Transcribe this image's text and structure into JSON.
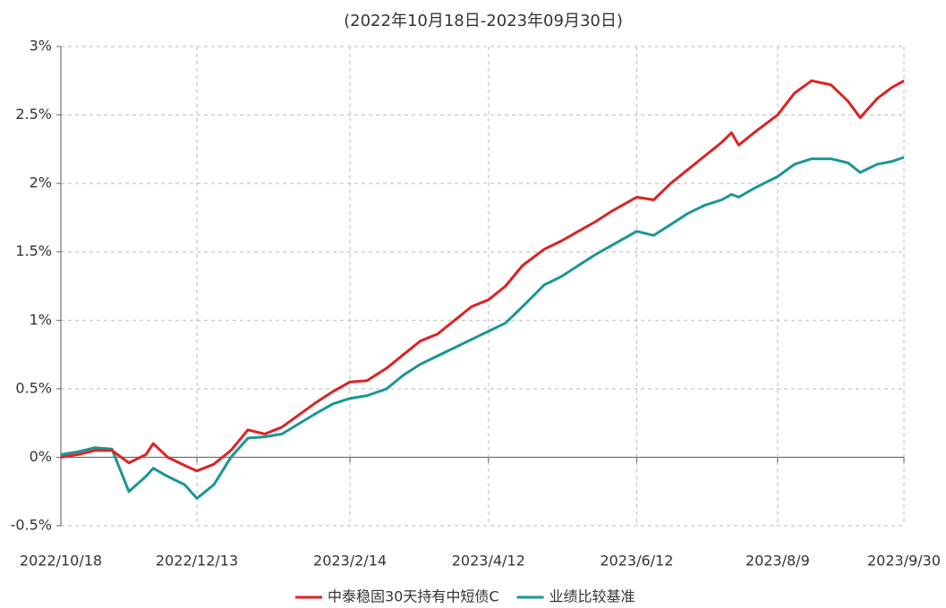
{
  "chart_data": {
    "type": "line",
    "title": "(2022年10月18日-2023年09月30日)",
    "x": [
      "2022/10/18",
      "2022/10/25",
      "2022/11/1",
      "2022/11/8",
      "2022/11/15",
      "2022/11/22",
      "2022/11/25",
      "2022/12/1",
      "2022/12/8",
      "2022/12/13",
      "2022/12/20",
      "2022/12/27",
      "2023/1/3",
      "2023/1/10",
      "2023/1/17",
      "2023/1/31",
      "2023/2/7",
      "2023/2/14",
      "2023/2/21",
      "2023/3/1",
      "2023/3/8",
      "2023/3/15",
      "2023/3/22",
      "2023/3/29",
      "2023/4/5",
      "2023/4/12",
      "2023/4/19",
      "2023/4/26",
      "2023/5/5",
      "2023/5/12",
      "2023/5/19",
      "2023/5/26",
      "2023/6/2",
      "2023/6/12",
      "2023/6/19",
      "2023/6/26",
      "2023/7/3",
      "2023/7/10",
      "2023/7/17",
      "2023/7/21",
      "2023/7/24",
      "2023/7/31",
      "2023/8/9",
      "2023/8/16",
      "2023/8/23",
      "2023/8/31",
      "2023/9/7",
      "2023/9/12",
      "2023/9/19",
      "2023/9/25",
      "2023/9/30"
    ],
    "series": [
      {
        "name": "中泰稳固30天持有中短债C",
        "color": "#dd2222",
        "values": [
          0,
          0.02,
          0.05,
          0.05,
          -0.04,
          0.02,
          0.1,
          0.0,
          -0.06,
          -0.1,
          -0.05,
          0.05,
          0.2,
          0.17,
          0.22,
          0.4,
          0.48,
          0.55,
          0.56,
          0.65,
          0.75,
          0.85,
          0.9,
          1.0,
          1.1,
          1.15,
          1.25,
          1.4,
          1.52,
          1.58,
          1.65,
          1.72,
          1.8,
          1.9,
          1.88,
          2.0,
          2.1,
          2.2,
          2.3,
          2.37,
          2.28,
          2.38,
          2.5,
          2.66,
          2.75,
          2.72,
          2.6,
          2.48,
          2.62,
          2.7,
          2.75
        ]
      },
      {
        "name": "业绩比较基准",
        "color": "#1a9696",
        "values": [
          0.02,
          0.04,
          0.07,
          0.06,
          -0.25,
          -0.14,
          -0.08,
          -0.14,
          -0.2,
          -0.3,
          -0.2,
          0.0,
          0.14,
          0.15,
          0.17,
          0.32,
          0.39,
          0.43,
          0.45,
          0.5,
          0.6,
          0.68,
          0.74,
          0.8,
          0.86,
          0.92,
          0.98,
          1.1,
          1.26,
          1.32,
          1.4,
          1.48,
          1.55,
          1.65,
          1.62,
          1.7,
          1.78,
          1.84,
          1.88,
          1.92,
          1.9,
          1.97,
          2.05,
          2.14,
          2.18,
          2.18,
          2.15,
          2.08,
          2.14,
          2.16,
          2.19
        ]
      }
    ],
    "xlim": [
      "2022/10/18",
      "2023/9/30"
    ],
    "xticks": [
      "2022/10/18",
      "2022/12/13",
      "2023/2/14",
      "2023/4/12",
      "2023/6/12",
      "2023/8/9",
      "2023/9/30"
    ],
    "ylim": [
      -0.5,
      3
    ],
    "yticks": [
      {
        "value": -0.5,
        "label": "-0.5%"
      },
      {
        "value": 0,
        "label": "0%"
      },
      {
        "value": 0.5,
        "label": "0.5%"
      },
      {
        "value": 1,
        "label": "1%"
      },
      {
        "value": 1.5,
        "label": "1.5%"
      },
      {
        "value": 2,
        "label": "2%"
      },
      {
        "value": 2.5,
        "label": "2.5%"
      },
      {
        "value": 3,
        "label": "3%"
      }
    ],
    "grid": true,
    "legend": "bottom"
  }
}
